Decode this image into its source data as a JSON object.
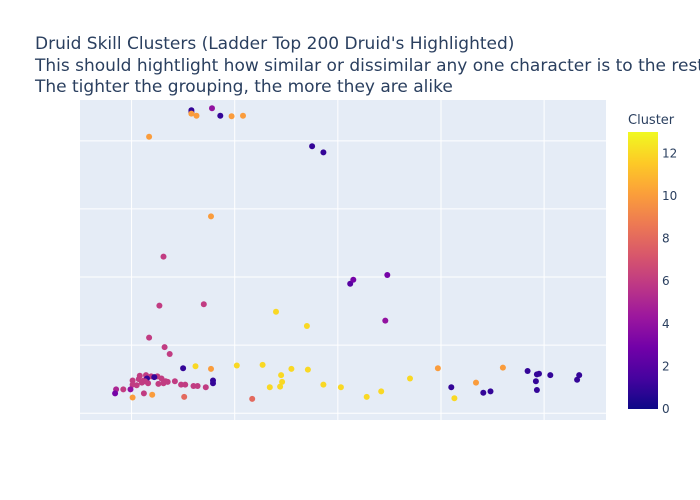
{
  "chart_data": {
    "type": "scatter",
    "title_lines": [
      "Druid Skill Clusters (Ladder Top 200 Druid's Highlighted)",
      "This should hightlight how similar or dissimilar any one character is to the rest.",
      "The tighter the grouping, the more they are alike"
    ],
    "xlabel": "",
    "ylabel": "",
    "xlim": [
      -0.5,
      4.6
    ],
    "ylim": [
      -0.1,
      4.6
    ],
    "xticks": [
      0,
      1,
      2,
      3,
      4
    ],
    "yticks": [
      0,
      1,
      2,
      3,
      4
    ],
    "grid": true,
    "colorbar": {
      "title": "Cluster",
      "min": 0,
      "max": 13,
      "ticks": [
        "0",
        "2",
        "4",
        "6",
        "8",
        "10",
        "12"
      ],
      "colorscale": [
        "#0d0887",
        "#46039f",
        "#7201a8",
        "#9c179e",
        "#bd3786",
        "#d8576b",
        "#ed7953",
        "#fb9f3a",
        "#fdca26",
        "#f0f921"
      ]
    },
    "points": [
      [
        -0.6,
        1.0,
        13
      ],
      [
        0.58,
        4.45,
        1
      ],
      [
        0.78,
        4.48,
        4
      ],
      [
        0.86,
        4.37,
        1
      ],
      [
        0.58,
        4.42,
        1
      ],
      [
        0.58,
        4.4,
        10
      ],
      [
        0.63,
        4.37,
        10
      ],
      [
        0.97,
        4.36,
        10
      ],
      [
        1.08,
        4.37,
        10
      ],
      [
        0.17,
        4.06,
        10
      ],
      [
        1.75,
        3.92,
        1
      ],
      [
        1.86,
        3.83,
        1
      ],
      [
        0.77,
        2.89,
        10
      ],
      [
        0.31,
        2.3,
        6
      ],
      [
        2.12,
        1.9,
        2
      ],
      [
        2.15,
        1.96,
        3
      ],
      [
        2.48,
        2.03,
        3
      ],
      [
        0.27,
        1.58,
        6
      ],
      [
        0.7,
        1.6,
        6
      ],
      [
        1.4,
        1.49,
        12
      ],
      [
        1.7,
        1.28,
        12
      ],
      [
        2.46,
        1.36,
        4
      ],
      [
        0.17,
        1.11,
        6
      ],
      [
        0.32,
        0.97,
        6
      ],
      [
        0.37,
        0.87,
        6
      ],
      [
        0.62,
        0.69,
        12
      ],
      [
        0.77,
        0.65,
        10
      ],
      [
        0.5,
        0.66,
        1
      ],
      [
        1.02,
        0.7,
        12
      ],
      [
        0.08,
        0.55,
        6
      ],
      [
        0.14,
        0.56,
        6
      ],
      [
        0.19,
        0.54,
        6
      ],
      [
        0.25,
        0.54,
        6
      ],
      [
        0.01,
        0.48,
        6
      ],
      [
        0.07,
        0.5,
        6
      ],
      [
        0.12,
        0.48,
        6
      ],
      [
        0.15,
        0.51,
        1
      ],
      [
        0.22,
        0.53,
        1
      ],
      [
        0.29,
        0.51,
        6
      ],
      [
        0.35,
        0.46,
        6
      ],
      [
        0.42,
        0.47,
        6
      ],
      [
        0.31,
        0.44,
        6
      ],
      [
        0.48,
        0.42,
        6
      ],
      [
        0.52,
        0.42,
        6
      ],
      [
        0.6,
        0.4,
        6
      ],
      [
        0.64,
        0.4,
        6
      ],
      [
        0.72,
        0.38,
        6
      ],
      [
        0.79,
        0.48,
        1
      ],
      [
        0.79,
        0.44,
        1
      ],
      [
        0.01,
        0.42,
        6
      ],
      [
        0.05,
        0.41,
        6
      ],
      [
        0.1,
        0.45,
        6
      ],
      [
        0.13,
        0.47,
        6
      ],
      [
        0.16,
        0.44,
        6
      ],
      [
        0.26,
        0.43,
        6
      ],
      [
        0.33,
        0.47,
        6
      ],
      [
        -0.15,
        0.35,
        5
      ],
      [
        -0.08,
        0.35,
        6
      ],
      [
        -0.01,
        0.35,
        4
      ],
      [
        -0.16,
        0.29,
        3
      ],
      [
        0.12,
        0.29,
        6
      ],
      [
        0.2,
        0.27,
        10
      ],
      [
        0.01,
        0.23,
        10
      ],
      [
        0.51,
        0.24,
        8
      ],
      [
        1.17,
        0.21,
        8
      ],
      [
        1.45,
        0.56,
        12
      ],
      [
        1.46,
        0.46,
        12
      ],
      [
        1.55,
        0.65,
        12
      ],
      [
        1.71,
        0.64,
        12
      ],
      [
        1.34,
        0.38,
        12
      ],
      [
        1.44,
        0.39,
        12
      ],
      [
        1.86,
        0.42,
        12
      ],
      [
        2.03,
        0.38,
        12
      ],
      [
        1.27,
        0.71,
        12
      ],
      [
        2.28,
        0.24,
        12
      ],
      [
        2.42,
        0.32,
        12
      ],
      [
        2.7,
        0.51,
        12
      ],
      [
        2.97,
        0.66,
        10
      ],
      [
        3.1,
        0.38,
        1
      ],
      [
        3.13,
        0.22,
        12
      ],
      [
        3.34,
        0.45,
        10
      ],
      [
        3.41,
        0.3,
        1
      ],
      [
        3.48,
        0.32,
        1
      ],
      [
        3.6,
        0.67,
        10
      ],
      [
        3.84,
        0.62,
        1
      ],
      [
        3.93,
        0.57,
        1
      ],
      [
        3.95,
        0.58,
        1
      ],
      [
        4.06,
        0.56,
        1
      ],
      [
        3.92,
        0.47,
        1
      ],
      [
        3.93,
        0.34,
        1
      ],
      [
        4.32,
        0.49,
        1
      ],
      [
        4.34,
        0.56,
        1
      ]
    ]
  }
}
